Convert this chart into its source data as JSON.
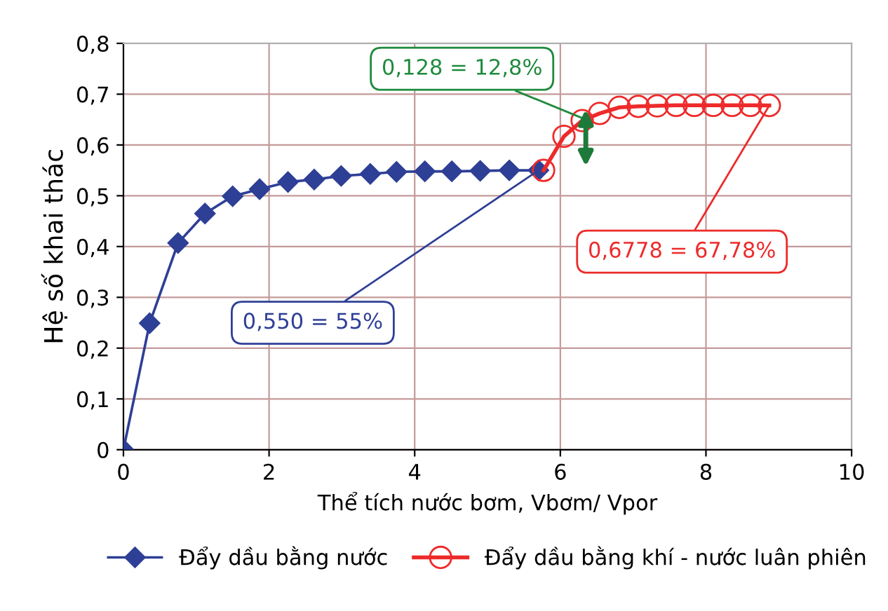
{
  "chart_data": {
    "type": "line",
    "xlabel": "Thể tích nước bơm, Vbơm/ Vpor",
    "ylabel": "Hệ số khai thác",
    "series": [
      {
        "name": "Đẩy dầu bằng nước",
        "color": "#2e3f96",
        "marker": "diamond",
        "x": [
          0,
          0.36,
          0.75,
          1.12,
          1.5,
          1.87,
          2.26,
          2.62,
          2.99,
          3.39,
          3.75,
          4.14,
          4.51,
          4.9,
          5.3,
          5.7
        ],
        "values": [
          0,
          0.249,
          0.407,
          0.465,
          0.499,
          0.513,
          0.527,
          0.532,
          0.539,
          0.543,
          0.547,
          0.548,
          0.548,
          0.549,
          0.55,
          0.55
        ]
      },
      {
        "name": "Đẩy dầu bằng khí - nước luân phiên",
        "color": "#ee2a2a",
        "marker": "circle",
        "x": [
          5.77,
          6.05,
          6.3,
          6.54,
          6.81,
          7.07,
          7.33,
          7.59,
          7.84,
          8.1,
          8.36,
          8.61,
          8.87
        ],
        "values": [
          0.55,
          0.617,
          0.648,
          0.662,
          0.674,
          0.676,
          0.677,
          0.678,
          0.678,
          0.678,
          0.678,
          0.678,
          0.6778
        ]
      }
    ],
    "annotations": [
      {
        "text": "0,128 = 12,8%",
        "x": 6.35,
        "y": 0.65
      },
      {
        "text": "0,550 = 55%",
        "x": 5.7,
        "y": 0.55
      },
      {
        "text": "0,6778 = 67,78%",
        "x": 8.87,
        "y": 0.6778
      }
    ],
    "xlim": [
      0,
      10
    ],
    "xticks": [
      0,
      2,
      4,
      6,
      8,
      10
    ],
    "ylim": [
      0,
      0.8
    ],
    "yticks": [
      0,
      {
        "value": 0.1,
        "label": "0,1"
      },
      {
        "value": 0.2,
        "label": "0,2"
      },
      {
        "value": 0.3,
        "label": "0,3"
      },
      {
        "value": 0.4,
        "label": "0,4"
      },
      {
        "value": 0.5,
        "label": "0,5"
      },
      {
        "value": 0.6,
        "label": "0,6"
      },
      {
        "value": 0.7,
        "label": "0,7"
      },
      {
        "value": 0.8,
        "label": "0,8"
      }
    ],
    "grid": true,
    "legend": "bottom",
    "line_style": "solid"
  }
}
